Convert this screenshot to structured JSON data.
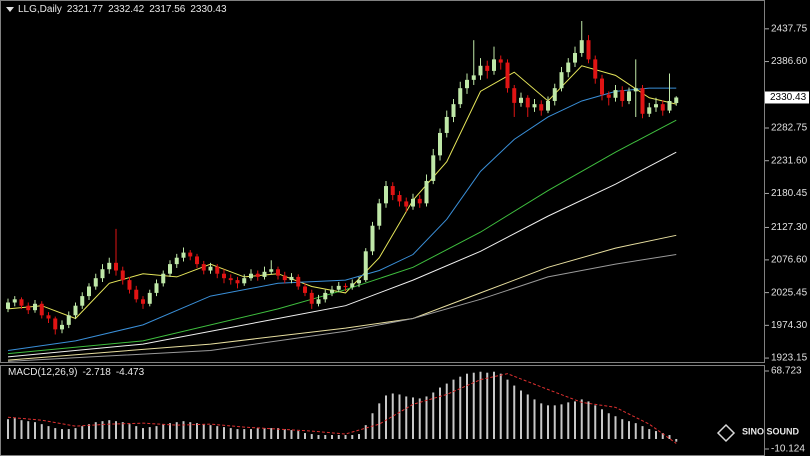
{
  "chart_data": [
    {
      "type": "candlestick",
      "title": "LLG,Daily",
      "header_values": [
        2321.77,
        2332.42,
        2317.56,
        2330.43
      ],
      "up_color": "#bfe8a8",
      "down_color": "#e01414",
      "ylim": [
        1917,
        2475
      ],
      "yticks": [
        {
          "value": 1923.15,
          "label": "1923.15"
        },
        {
          "value": 1974.3,
          "label": "1974.30"
        },
        2025.45,
        {
          "value": 2076.6,
          "label": "2076.60"
        },
        {
          "value": 2127.3,
          "label": "2127.30"
        },
        2180.45,
        {
          "value": 2231.6,
          "label": "2231.60"
        },
        2282.75,
        {
          "value": 2386.6,
          "label": "2386.60"
        },
        2437.75
      ],
      "last_price": 2330.43,
      "ohlc": [
        [
          2000,
          2016,
          1995,
          2010
        ],
        [
          2010,
          2020,
          2004,
          2015
        ],
        [
          2015,
          2018,
          2000,
          2005
        ],
        [
          2005,
          2010,
          1992,
          1998
        ],
        [
          1998,
          2014,
          1994,
          2008
        ],
        [
          2008,
          2012,
          1985,
          1990
        ],
        [
          1990,
          1995,
          1978,
          1985
        ],
        [
          1985,
          1988,
          1960,
          1968
        ],
        [
          1968,
          1982,
          1962,
          1975
        ],
        [
          1975,
          1996,
          1970,
          1990
        ],
        [
          1990,
          2010,
          1984,
          2005
        ],
        [
          2005,
          2026,
          2000,
          2020
        ],
        [
          2020,
          2040,
          2014,
          2035
        ],
        [
          2035,
          2055,
          2030,
          2048
        ],
        [
          2048,
          2070,
          2042,
          2062
        ],
        [
          2062,
          2080,
          2055,
          2072
        ],
        [
          2072,
          2125,
          2052,
          2060
        ],
        [
          2060,
          2066,
          2038,
          2045
        ],
        [
          2045,
          2050,
          2024,
          2030
        ],
        [
          2030,
          2036,
          2010,
          2015
        ],
        [
          2015,
          2020,
          2000,
          2008
        ],
        [
          2008,
          2030,
          2004,
          2025
        ],
        [
          2025,
          2046,
          2020,
          2040
        ],
        [
          2040,
          2060,
          2035,
          2055
        ],
        [
          2055,
          2076,
          2050,
          2070
        ],
        [
          2070,
          2086,
          2064,
          2080
        ],
        [
          2080,
          2096,
          2074,
          2088
        ],
        [
          2088,
          2092,
          2076,
          2082
        ],
        [
          2082,
          2086,
          2064,
          2070
        ],
        [
          2070,
          2075,
          2054,
          2060
        ],
        [
          2060,
          2072,
          2055,
          2066
        ],
        [
          2066,
          2070,
          2048,
          2055
        ],
        [
          2055,
          2062,
          2040,
          2048
        ],
        [
          2048,
          2054,
          2038,
          2045
        ],
        [
          2045,
          2050,
          2032,
          2040
        ],
        [
          2040,
          2054,
          2036,
          2048
        ],
        [
          2048,
          2062,
          2044,
          2055
        ],
        [
          2055,
          2060,
          2044,
          2050
        ],
        [
          2050,
          2066,
          2046,
          2058
        ],
        [
          2058,
          2076,
          2054,
          2062
        ],
        [
          2062,
          2066,
          2046,
          2052
        ],
        [
          2052,
          2058,
          2040,
          2045
        ],
        [
          2045,
          2056,
          2040,
          2050
        ],
        [
          2050,
          2054,
          2030,
          2035
        ],
        [
          2035,
          2040,
          2020,
          2025
        ],
        [
          2025,
          2030,
          2000,
          2008
        ],
        [
          2008,
          2022,
          2004,
          2015
        ],
        [
          2015,
          2030,
          2010,
          2025
        ],
        [
          2025,
          2036,
          2020,
          2030
        ],
        [
          2030,
          2042,
          2026,
          2036
        ],
        [
          2036,
          2040,
          2028,
          2034
        ],
        [
          2034,
          2046,
          2030,
          2040
        ],
        [
          2040,
          2050,
          2034,
          2045
        ],
        [
          2045,
          2095,
          2042,
          2090
        ],
        [
          2090,
          2136,
          2084,
          2130
        ],
        [
          2130,
          2172,
          2124,
          2165
        ],
        [
          2165,
          2200,
          2158,
          2192
        ],
        [
          2192,
          2198,
          2170,
          2178
        ],
        [
          2178,
          2184,
          2160,
          2168
        ],
        [
          2168,
          2174,
          2152,
          2160
        ],
        [
          2160,
          2180,
          2155,
          2172
        ],
        [
          2172,
          2178,
          2158,
          2165
        ],
        [
          2165,
          2210,
          2160,
          2200
        ],
        [
          2200,
          2250,
          2195,
          2240
        ],
        [
          2240,
          2282,
          2232,
          2275
        ],
        [
          2275,
          2310,
          2268,
          2300
        ],
        [
          2300,
          2328,
          2292,
          2320
        ],
        [
          2320,
          2355,
          2314,
          2345
        ],
        [
          2345,
          2368,
          2336,
          2358
        ],
        [
          2358,
          2420,
          2350,
          2365
        ],
        [
          2365,
          2392,
          2358,
          2380
        ],
        [
          2380,
          2388,
          2360,
          2372
        ],
        [
          2372,
          2410,
          2366,
          2390
        ],
        [
          2390,
          2396,
          2374,
          2385
        ],
        [
          2385,
          2390,
          2338,
          2345
        ],
        [
          2345,
          2350,
          2300,
          2322
        ],
        [
          2322,
          2338,
          2316,
          2330
        ],
        [
          2330,
          2334,
          2300,
          2315
        ],
        [
          2315,
          2328,
          2308,
          2320
        ],
        [
          2320,
          2326,
          2302,
          2310
        ],
        [
          2310,
          2332,
          2306,
          2325
        ],
        [
          2325,
          2352,
          2318,
          2345
        ],
        [
          2345,
          2378,
          2340,
          2370
        ],
        [
          2370,
          2392,
          2362,
          2385
        ],
        [
          2385,
          2410,
          2378,
          2400
        ],
        [
          2400,
          2450,
          2394,
          2420
        ],
        [
          2420,
          2428,
          2384,
          2390
        ],
        [
          2390,
          2396,
          2352,
          2360
        ],
        [
          2360,
          2366,
          2326,
          2335
        ],
        [
          2335,
          2340,
          2318,
          2330
        ],
        [
          2330,
          2350,
          2324,
          2342
        ],
        [
          2342,
          2348,
          2316,
          2325
        ],
        [
          2325,
          2346,
          2320,
          2340
        ],
        [
          2340,
          2390,
          2300,
          2345
        ],
        [
          2345,
          2350,
          2298,
          2305
        ],
        [
          2305,
          2322,
          2300,
          2315
        ],
        [
          2315,
          2330,
          2308,
          2320
        ],
        [
          2320,
          2326,
          2302,
          2310
        ],
        [
          2310,
          2368,
          2306,
          2325
        ],
        [
          2321.77,
          2332.42,
          2317.56,
          2330.43
        ]
      ],
      "series": [
        {
          "color": "#e6e65a",
          "x": [
            0,
            5,
            10,
            15,
            20,
            25,
            30,
            35,
            40,
            45,
            50,
            55,
            60,
            65,
            70,
            75,
            80,
            85,
            90,
            95,
            99
          ],
          "values": [
            2000,
            2005,
            1985,
            2040,
            2055,
            2050,
            2070,
            2050,
            2055,
            2035,
            2025,
            2080,
            2170,
            2230,
            2340,
            2370,
            2325,
            2380,
            2365,
            2330,
            2320
          ]
        },
        {
          "color": "#3a8fd8",
          "x": [
            0,
            10,
            20,
            30,
            40,
            50,
            55,
            60,
            65,
            70,
            75,
            80,
            85,
            90,
            95,
            99
          ],
          "values": [
            1935,
            1950,
            1975,
            2020,
            2040,
            2045,
            2060,
            2085,
            2140,
            2215,
            2265,
            2300,
            2325,
            2340,
            2345,
            2345
          ]
        },
        {
          "color": "#3fbf3f",
          "x": [
            0,
            20,
            40,
            50,
            60,
            70,
            80,
            90,
            99
          ],
          "values": [
            1930,
            1950,
            2000,
            2030,
            2065,
            2120,
            2185,
            2245,
            2295
          ]
        },
        {
          "color": "#f0f0f0",
          "x": [
            0,
            20,
            40,
            50,
            60,
            70,
            80,
            90,
            99
          ],
          "values": [
            1925,
            1945,
            1985,
            2005,
            2045,
            2090,
            2145,
            2195,
            2245
          ]
        },
        {
          "color": "#e8dfa0",
          "x": [
            0,
            30,
            50,
            60,
            70,
            80,
            90,
            99
          ],
          "values": [
            1920,
            1945,
            1970,
            1985,
            2025,
            2065,
            2095,
            2115
          ]
        },
        {
          "color": "#9a9a9a",
          "x": [
            0,
            30,
            50,
            60,
            70,
            80,
            90,
            99
          ],
          "values": [
            1918,
            1935,
            1965,
            1985,
            2015,
            2050,
            2070,
            2085
          ]
        }
      ]
    },
    {
      "type": "macd",
      "title": "MACD(12,26,9)",
      "header_values": [
        -2.718,
        -4.473
      ],
      "color": "#c8c8c8",
      "ylim": [
        -10.124,
        68.723
      ],
      "yticks": [
        -10.124,
        68.723
      ],
      "values": [
        20,
        21,
        19,
        18,
        17,
        15,
        13,
        11,
        10,
        10,
        11,
        13,
        15,
        17,
        18,
        19,
        18,
        17,
        15,
        13,
        11,
        12,
        13,
        15,
        16,
        17,
        18,
        17,
        16,
        15,
        14,
        13,
        12,
        11,
        10,
        10,
        10,
        11,
        11,
        11,
        11,
        10,
        9,
        8,
        6,
        5,
        4,
        4,
        4,
        4,
        4,
        4,
        5,
        14,
        26,
        36,
        44,
        46,
        45,
        43,
        42,
        41,
        43,
        47,
        52,
        56,
        60,
        63,
        66,
        67,
        68,
        67,
        68,
        66,
        60,
        54,
        49,
        45,
        40,
        36,
        34,
        34,
        35,
        37,
        38,
        40,
        38,
        34,
        30,
        26,
        23,
        20,
        18,
        16,
        13,
        10,
        8,
        6,
        4,
        -2.718
      ],
      "signal": {
        "color": "#e03030",
        "x": [
          0,
          5,
          10,
          15,
          20,
          25,
          30,
          35,
          40,
          45,
          50,
          55,
          60,
          65,
          70,
          74,
          80,
          85,
          90,
          95,
          99
        ],
        "values": [
          22,
          19,
          13,
          15,
          16,
          14,
          15,
          12,
          10,
          8,
          5,
          15,
          35,
          45,
          60,
          66,
          50,
          37,
          32,
          15,
          -4.473
        ]
      }
    },
    {
      "type": "logo",
      "brand": "SINO SOUND"
    }
  ]
}
